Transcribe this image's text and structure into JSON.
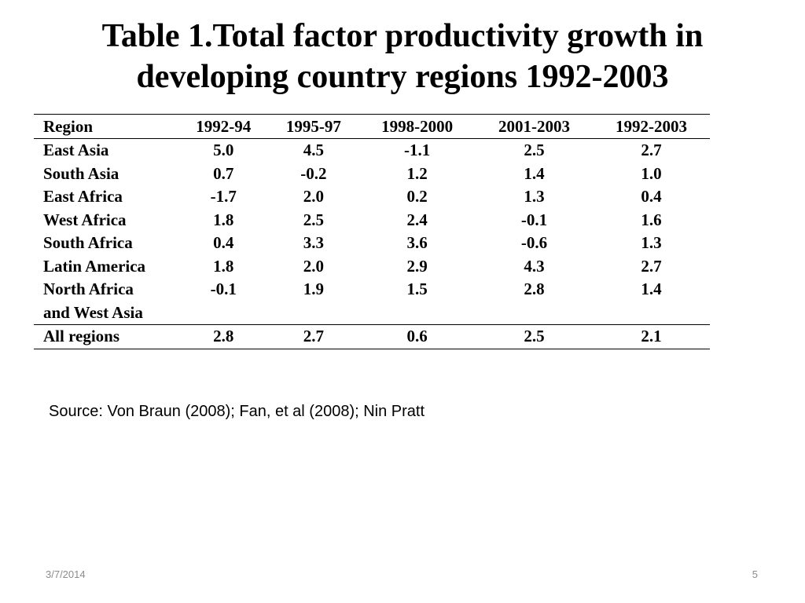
{
  "slide": {
    "title_line1": "Table 1.Total factor productivity growth in",
    "title_line2": "developing country regions 1992-2003"
  },
  "table": {
    "headers": [
      "Region",
      "1992-94",
      "1995-97",
      "1998-2000",
      "2001-2003",
      "1992-2003"
    ],
    "rows": [
      {
        "region": "East Asia",
        "values": [
          "5.0",
          "4.5",
          "-1.1",
          "2.5",
          "2.7"
        ]
      },
      {
        "region": "South Asia",
        "values": [
          "0.7",
          "-0.2",
          "1.2",
          "1.4",
          "1.0"
        ]
      },
      {
        "region": "East Africa",
        "values": [
          "-1.7",
          "2.0",
          "0.2",
          "1.3",
          "0.4"
        ]
      },
      {
        "region": "West Africa",
        "values": [
          "1.8",
          "2.5",
          "2.4",
          "-0.1",
          "1.6"
        ]
      },
      {
        "region": "South Africa",
        "values": [
          "0.4",
          "3.3",
          "3.6",
          "-0.6",
          "1.3"
        ]
      },
      {
        "region": "Latin America",
        "values": [
          "1.8",
          "2.0",
          "2.9",
          "4.3",
          "2.7"
        ]
      },
      {
        "region_line1": "North Africa",
        "region_line2": "and West Asia",
        "values": [
          "-0.1",
          "1.9",
          "1.5",
          "2.8",
          "1.4"
        ]
      }
    ],
    "total": {
      "region": "All regions",
      "values": [
        "2.8",
        "2.7",
        "0.6",
        "2.5",
        "2.1"
      ]
    }
  },
  "source": "Source: Von Braun (2008); Fan, et al (2008); Nin Pratt",
  "footer": {
    "date": "3/7/2014",
    "page": "5"
  }
}
